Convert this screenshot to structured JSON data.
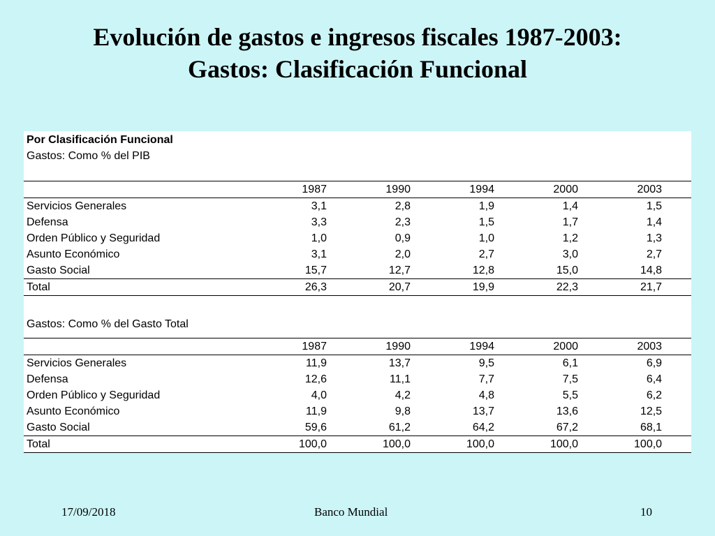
{
  "title": {
    "line1": "Evolución de gastos e ingresos fiscales 1987-2003:",
    "line2": "Gastos: Clasificación Funcional"
  },
  "table": {
    "heading": "Por Clasificación Funcional",
    "section1": {
      "subtitle": "Gastos: Como % del PIB",
      "years": [
        "1987",
        "1990",
        "1994",
        "2000",
        "2003"
      ],
      "rows": [
        {
          "label": "Servicios Generales",
          "values": [
            "3,1",
            "2,8",
            "1,9",
            "1,4",
            "1,5"
          ]
        },
        {
          "label": "Defensa",
          "values": [
            "3,3",
            "2,3",
            "1,5",
            "1,7",
            "1,4"
          ]
        },
        {
          "label": "Orden Público y Seguridad",
          "values": [
            "1,0",
            "0,9",
            "1,0",
            "1,2",
            "1,3"
          ]
        },
        {
          "label": "Asunto Económico",
          "values": [
            "3,1",
            "2,0",
            "2,7",
            "3,0",
            "2,7"
          ]
        },
        {
          "label": "Gasto Social",
          "values": [
            "15,7",
            "12,7",
            "12,8",
            "15,0",
            "14,8"
          ]
        }
      ],
      "total": {
        "label": "Total",
        "values": [
          "26,3",
          "20,7",
          "19,9",
          "22,3",
          "21,7"
        ]
      }
    },
    "section2": {
      "subtitle": "Gastos: Como % del Gasto Total",
      "years": [
        "1987",
        "1990",
        "1994",
        "2000",
        "2003"
      ],
      "rows": [
        {
          "label": "Servicios Generales",
          "values": [
            "11,9",
            "13,7",
            "9,5",
            "6,1",
            "6,9"
          ]
        },
        {
          "label": "Defensa",
          "values": [
            "12,6",
            "11,1",
            "7,7",
            "7,5",
            "6,4"
          ]
        },
        {
          "label": "Orden Público y Seguridad",
          "values": [
            "4,0",
            "4,2",
            "4,8",
            "5,5",
            "6,2"
          ]
        },
        {
          "label": "Asunto Económico",
          "values": [
            "11,9",
            "9,8",
            "13,7",
            "13,6",
            "12,5"
          ]
        },
        {
          "label": "Gasto Social",
          "values": [
            "59,6",
            "61,2",
            "64,2",
            "67,2",
            "68,1"
          ]
        }
      ],
      "total": {
        "label": "Total",
        "values": [
          "100,0",
          "100,0",
          "100,0",
          "100,0",
          "100,0"
        ]
      }
    }
  },
  "footer": {
    "date": "17/09/2018",
    "center": "Banco Mundial",
    "page": "10"
  }
}
